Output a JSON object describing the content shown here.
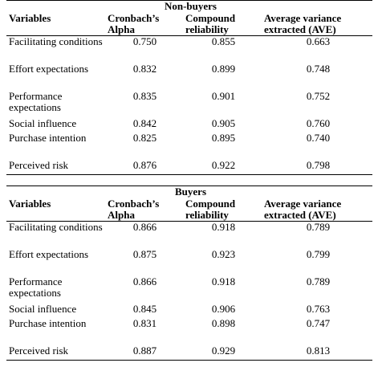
{
  "tables": [
    {
      "group": "Non-buyers",
      "headers": {
        "variables": "Variables",
        "cronbach": "Cronbach’s Alpha",
        "compound": "Compound reliability",
        "ave": "Average variance extracted (AVE)"
      },
      "rows": [
        {
          "variable": "Facilitating conditions",
          "cronbach": "0.750",
          "compound": "0.855",
          "ave": "0.663"
        },
        {
          "variable": "Effort expectations",
          "cronbach": "0.832",
          "compound": "0.899",
          "ave": "0.748"
        },
        {
          "variable": "Performance expectations",
          "cronbach": "0.835",
          "compound": "0.901",
          "ave": "0.752"
        },
        {
          "variable": "Social influence",
          "cronbach": "0.842",
          "compound": "0.905",
          "ave": "0.760"
        },
        {
          "variable": "Purchase intention",
          "cronbach": "0.825",
          "compound": "0.895",
          "ave": "0.740"
        },
        {
          "variable": "Perceived risk",
          "cronbach": "0.876",
          "compound": "0.922",
          "ave": "0.798"
        }
      ]
    },
    {
      "group": "Buyers",
      "headers": {
        "variables": "Variables",
        "cronbach": "Cronbach’s Alpha",
        "compound": "Compound reliability",
        "ave": "Average variance extracted (AVE)"
      },
      "rows": [
        {
          "variable": "Facilitating conditions",
          "cronbach": "0.866",
          "compound": "0.918",
          "ave": "0.789"
        },
        {
          "variable": "Effort expectations",
          "cronbach": "0.875",
          "compound": "0.923",
          "ave": "0.799"
        },
        {
          "variable": "Performance expectations",
          "cronbach": "0.866",
          "compound": "0.918",
          "ave": "0.789"
        },
        {
          "variable": "Social influence",
          "cronbach": "0.845",
          "compound": "0.906",
          "ave": "0.763"
        },
        {
          "variable": "Purchase intention",
          "cronbach": "0.831",
          "compound": "0.898",
          "ave": "0.747"
        },
        {
          "variable": "Perceived risk",
          "cronbach": "0.887",
          "compound": "0.929",
          "ave": "0.813"
        }
      ]
    }
  ]
}
